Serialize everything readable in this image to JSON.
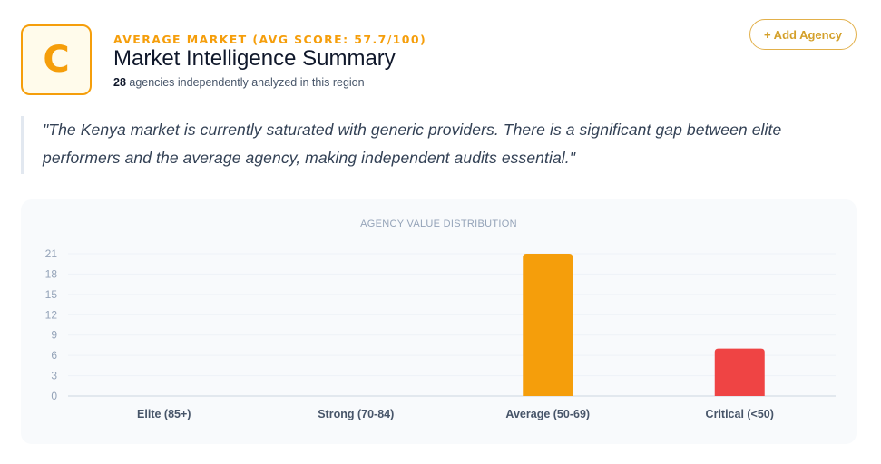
{
  "summary": {
    "grade": "C",
    "eyebrow": "AVERAGE MARKET (AVG SCORE: 57.7/100)",
    "title": "Market Intelligence Summary",
    "agency_count": "28",
    "agency_count_suffix": " agencies independently analyzed in this region"
  },
  "actions": {
    "add_agency_label": "+ Add Agency"
  },
  "quote": {
    "text": "\"The Kenya market is currently saturated with generic providers. There is a significant gap between elite performers and the average agency, making independent audits essential.\""
  },
  "colors": {
    "accent": "#f59e0b",
    "critical": "#ef4444"
  },
  "chart_data": {
    "type": "bar",
    "title": "AGENCY VALUE DISTRIBUTION",
    "categories": [
      "Elite (85+)",
      "Strong (70-84)",
      "Average (50-69)",
      "Critical (<50)"
    ],
    "values": [
      0,
      0,
      21,
      7
    ],
    "bar_colors": [
      "#10b981",
      "#3b82f6",
      "#f59e0b",
      "#ef4444"
    ],
    "yticks": [
      0,
      3,
      6,
      9,
      12,
      15,
      18,
      21
    ],
    "ylim": [
      0,
      21
    ],
    "grid": true,
    "legend": "none"
  }
}
